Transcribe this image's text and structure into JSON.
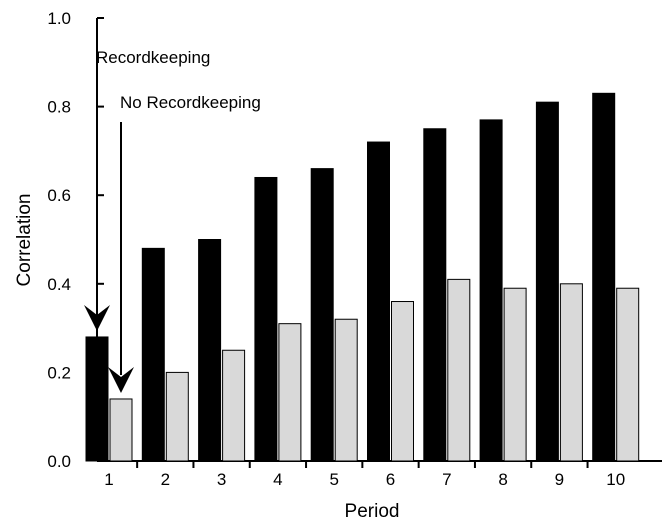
{
  "chart_data": {
    "type": "bar",
    "title": "",
    "xlabel": "Period",
    "ylabel": "Correlation",
    "ylim": [
      0,
      1.0
    ],
    "yticks": [
      "0.0",
      "0.2",
      "0.4",
      "0.6",
      "0.8",
      "1.0"
    ],
    "categories": [
      "1",
      "2",
      "3",
      "4",
      "5",
      "6",
      "7",
      "8",
      "9",
      "10"
    ],
    "series": [
      {
        "name": "Recordkeeping",
        "color": "#000000",
        "values": [
          0.28,
          0.48,
          0.5,
          0.64,
          0.66,
          0.72,
          0.75,
          0.77,
          0.81,
          0.83
        ]
      },
      {
        "name": "No Recordkeeping",
        "color": "#d9d9d9",
        "values": [
          0.14,
          0.2,
          0.25,
          0.31,
          0.32,
          0.36,
          0.41,
          0.39,
          0.4,
          0.39
        ]
      }
    ],
    "legend": "arrow annotations at first category",
    "grid": false
  }
}
